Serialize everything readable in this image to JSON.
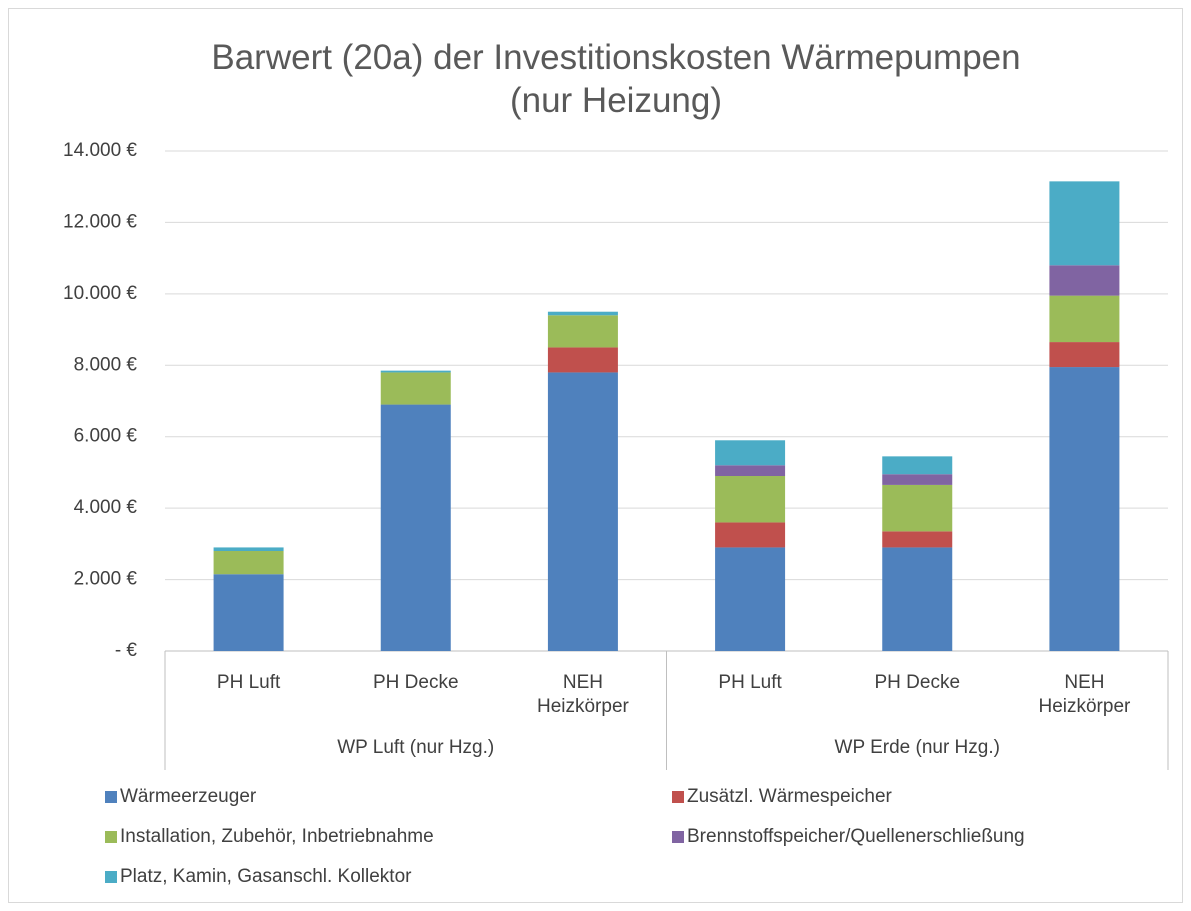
{
  "chart_data": {
    "type": "stacked_bar",
    "title": "Barwert (20a) der Investitionskosten Wärmepumpen\n(nur Heizung)",
    "groups": [
      {
        "label": "WP Luft (nur Hzg.)",
        "categories": [
          "PH Luft",
          "PH Decke",
          "NEH\nHeizkörper"
        ]
      },
      {
        "label": "WP Erde (nur Hzg.)",
        "categories": [
          "PH Luft",
          "PH Decke",
          "NEH\nHeizkörper"
        ]
      }
    ],
    "series": [
      {
        "name": "Wärmeerzeuger",
        "color": "#4f81bd",
        "values": [
          2150,
          6900,
          7800,
          2900,
          2900,
          7950
        ]
      },
      {
        "name": "Zusätzl. Wärmespeicher",
        "color": "#c0504d",
        "values": [
          0,
          0,
          700,
          700,
          450,
          700
        ]
      },
      {
        "name": "Installation, Zubehör, Inbetriebnahme",
        "color": "#9bbb59",
        "values": [
          650,
          900,
          900,
          1300,
          1300,
          1300
        ]
      },
      {
        "name": "Brennstoffspeicher/Quellenerschließung",
        "color": "#8064a2",
        "values": [
          0,
          0,
          0,
          300,
          300,
          850
        ]
      },
      {
        "name": "Platz, Kamin, Gasanschl. Kollektor",
        "color": "#4bacc6",
        "values": [
          100,
          50,
          100,
          700,
          500,
          2350
        ]
      }
    ],
    "ylim": [
      0,
      14000
    ],
    "yticks": [
      {
        "value": 0,
        "label": "-   €"
      },
      {
        "value": 2000,
        "label": "2.000 €"
      },
      {
        "value": 4000,
        "label": "4.000 €"
      },
      {
        "value": 6000,
        "label": "6.000 €"
      },
      {
        "value": 8000,
        "label": "8.000 €"
      },
      {
        "value": 10000,
        "label": "10.000 €"
      },
      {
        "value": 12000,
        "label": "12.000 €"
      },
      {
        "value": 14000,
        "label": "14.000 €"
      }
    ],
    "grid": true
  }
}
